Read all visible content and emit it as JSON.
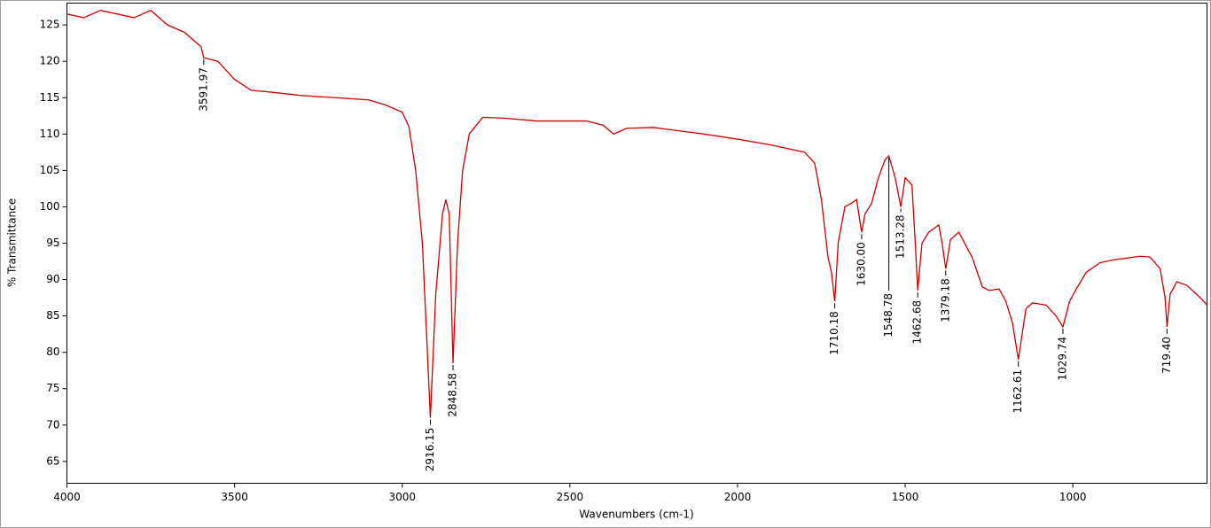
{
  "chart_data": {
    "type": "line",
    "xlabel": "Wavenumbers (cm-1)",
    "ylabel": "% Transmittance",
    "color": "#cc0000",
    "xlim": [
      4000,
      600
    ],
    "ylim": [
      62,
      128
    ],
    "xticks": [
      4000,
      3500,
      3000,
      2500,
      2000,
      1500,
      1000
    ],
    "yticks": [
      65,
      70,
      75,
      80,
      85,
      90,
      95,
      100,
      105,
      110,
      115,
      120,
      125
    ],
    "x": [
      4000,
      3950,
      3900,
      3850,
      3800,
      3750,
      3700,
      3650,
      3600,
      3591.97,
      3550,
      3500,
      3450,
      3400,
      3300,
      3200,
      3100,
      3050,
      3000,
      2980,
      2960,
      2940,
      2930,
      2916.15,
      2900,
      2880,
      2870,
      2860,
      2848.58,
      2835,
      2820,
      2800,
      2760,
      2700,
      2600,
      2450,
      2400,
      2370,
      2330,
      2250,
      2100,
      2000,
      1900,
      1800,
      1770,
      1750,
      1730,
      1720,
      1710.18,
      1700,
      1680,
      1660,
      1645,
      1630,
      1620,
      1600,
      1580,
      1560,
      1548.78,
      1530,
      1513.28,
      1500,
      1480,
      1470,
      1462.68,
      1450,
      1430,
      1400,
      1390,
      1379.18,
      1365,
      1340,
      1300,
      1270,
      1250,
      1220,
      1200,
      1180,
      1162.61,
      1140,
      1120,
      1080,
      1050,
      1029.74,
      1010,
      990,
      960,
      920,
      880,
      800,
      770,
      740,
      725,
      719.4,
      710,
      690,
      660,
      620,
      600
    ],
    "values": [
      126.5,
      126,
      127,
      126.5,
      126,
      127,
      125,
      124,
      122,
      120.5,
      120,
      117.5,
      116,
      115.8,
      115.3,
      115,
      114.7,
      114,
      113,
      111,
      105,
      95,
      85,
      71,
      88,
      99,
      101,
      99,
      78.5,
      95,
      105,
      110,
      112.3,
      112.2,
      111.8,
      111.8,
      111.2,
      110,
      110.8,
      110.9,
      110,
      109.3,
      108.5,
      107.5,
      106,
      101,
      93,
      91,
      87,
      95,
      100,
      100.5,
      101,
      96.5,
      99,
      100.5,
      104,
      106.5,
      107,
      104,
      100,
      104,
      103,
      95,
      88.5,
      95,
      96.5,
      97.5,
      95,
      91.5,
      95.5,
      96.5,
      93,
      89,
      88.5,
      88.7,
      87,
      84,
      79,
      86,
      86.8,
      86.5,
      85,
      83.5,
      87,
      88.7,
      91,
      92.3,
      92.7,
      93.2,
      93.1,
      91.5,
      87.5,
      83.5,
      88,
      89.7,
      89.2,
      87.5,
      86.5
    ],
    "annotations": [
      {
        "x": 3591.97,
        "y": 120.5,
        "label": "3591.97"
      },
      {
        "x": 2916.15,
        "y": 71,
        "label": "2916.15"
      },
      {
        "x": 2848.58,
        "y": 78.5,
        "label": "2848.58"
      },
      {
        "x": 1710.18,
        "y": 87,
        "label": "1710.18"
      },
      {
        "x": 1630,
        "y": 96.5,
        "label": "1630.00"
      },
      {
        "x": 1548.78,
        "y": 107,
        "label": "1548.78"
      },
      {
        "x": 1513.28,
        "y": 100,
        "label": "1513.28"
      },
      {
        "x": 1462.68,
        "y": 88.5,
        "label": "1462.68"
      },
      {
        "x": 1379.18,
        "y": 91.5,
        "label": "1379.18"
      },
      {
        "x": 1162.61,
        "y": 79,
        "label": "1162.61"
      },
      {
        "x": 1029.74,
        "y": 83.5,
        "label": "1029.74"
      },
      {
        "x": 719.4,
        "y": 83.5,
        "label": "719.40"
      }
    ]
  }
}
